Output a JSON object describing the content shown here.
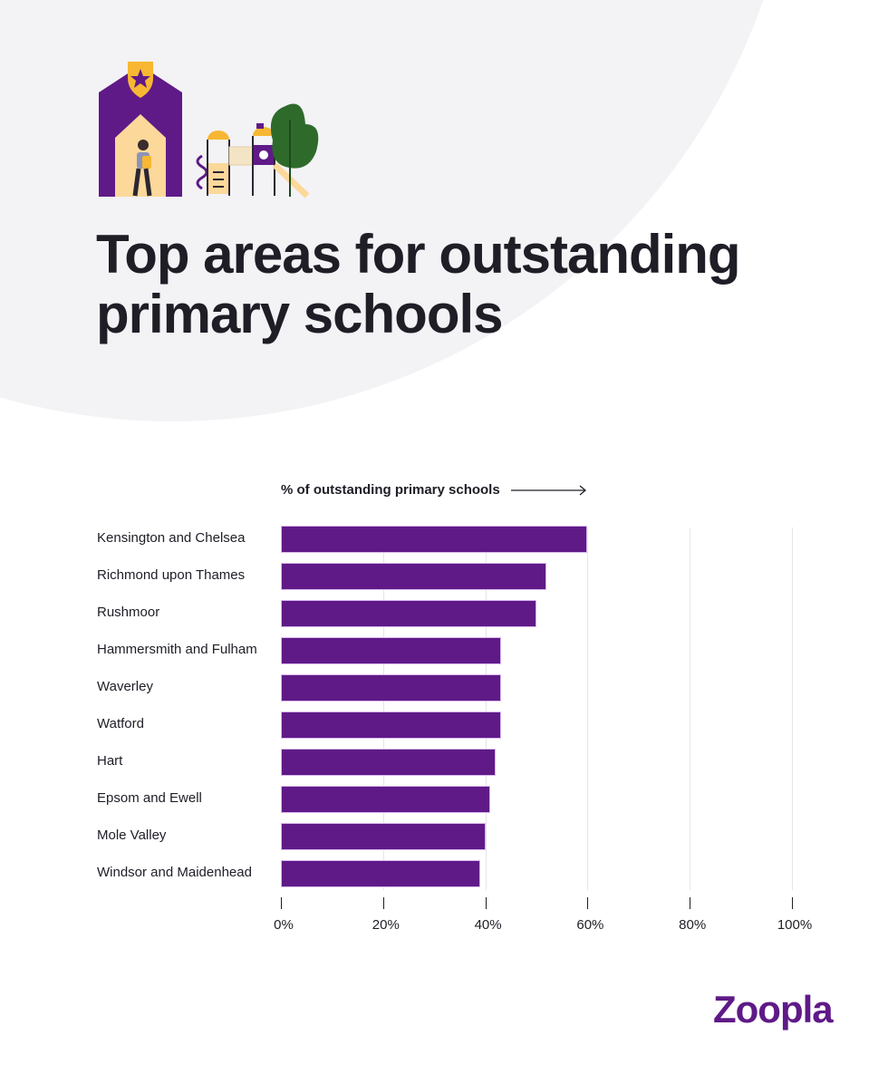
{
  "header": {
    "title_line1": "Top areas for outstanding",
    "title_line2": "primary schools",
    "illustration": "school-playground-illustration"
  },
  "chart": {
    "axis_title": "% of outstanding primary schools",
    "axis_arrow": "arrow-right-icon"
  },
  "brand": {
    "logo_text": "Zoopla"
  },
  "colors": {
    "bar": "#5f1a87",
    "background_blob": "#f3f2f5",
    "text": "#1f1d26",
    "accent_yellow": "#f7b733"
  },
  "chart_data": {
    "type": "bar",
    "orientation": "horizontal",
    "title": "Top areas for outstanding primary schools",
    "xlabel": "% of outstanding primary schools",
    "ylabel": "",
    "categories": [
      "Kensington and Chelsea",
      "Richmond upon Thames",
      "Rushmoor",
      "Hammersmith and Fulham",
      "Waverley",
      "Watford",
      "Hart",
      "Epsom and Ewell",
      "Mole Valley",
      "Windsor and Maidenhead"
    ],
    "values": [
      60,
      52,
      50,
      43,
      43,
      43,
      42,
      41,
      40,
      39
    ],
    "xlim": [
      0,
      100
    ],
    "xticks": [
      "0%",
      "20%",
      "40%",
      "60%",
      "80%",
      "100%"
    ],
    "grid": true,
    "legend": "none"
  }
}
